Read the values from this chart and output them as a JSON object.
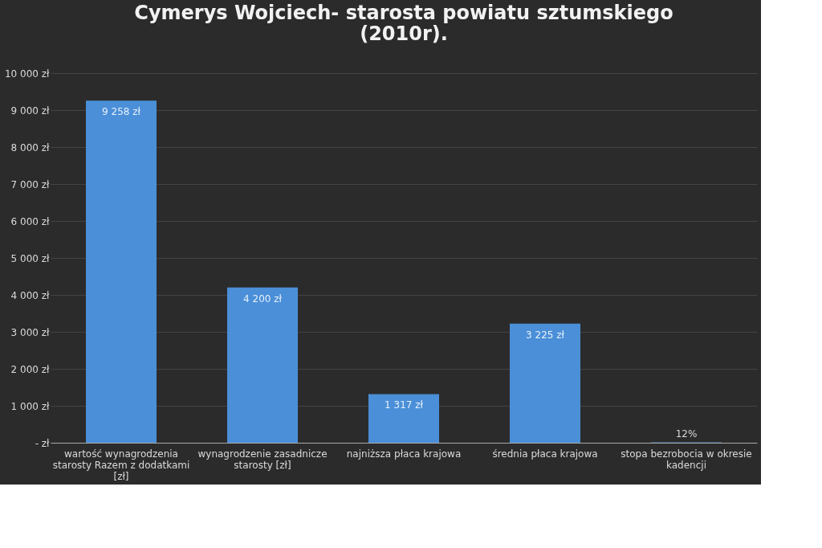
{
  "chart_data": {
    "type": "bar",
    "title": "Cymerys Wojciech- starosta powiatu sztumskiego (2010r).",
    "categories": [
      "wartość wynagrodzenia starosty Razem z dodatkami [zł]",
      "wynagrodzenie zasadnicze starosty [zł]",
      "najniższa płaca krajowa",
      "średnia płaca krajowa",
      "stopa bezrobocia w okresie kadencji"
    ],
    "values": [
      9258,
      4200,
      1317,
      3225,
      12
    ],
    "value_labels": [
      "9 258 zł",
      "4 200 zł",
      "1 317 zł",
      "3 225 zł",
      "12%"
    ],
    "color": "#4a8fd8",
    "ylim": [
      0,
      10000
    ],
    "yticks": [
      {
        "value": 0,
        "label": "- zł"
      },
      {
        "value": 1000,
        "label": "1 000 zł"
      },
      {
        "value": 2000,
        "label": "2 000 zł"
      },
      {
        "value": 3000,
        "label": "3 000 zł"
      },
      {
        "value": 4000,
        "label": "4 000 zł"
      },
      {
        "value": 5000,
        "label": "5 000 zł"
      },
      {
        "value": 6000,
        "label": "6 000 zł"
      },
      {
        "value": 7000,
        "label": "7 000 zł"
      },
      {
        "value": 8000,
        "label": "8 000 zł"
      },
      {
        "value": 9000,
        "label": "9 000 zł"
      },
      {
        "value": 10000,
        "label": "10 000 zł"
      }
    ],
    "grid": "y"
  }
}
